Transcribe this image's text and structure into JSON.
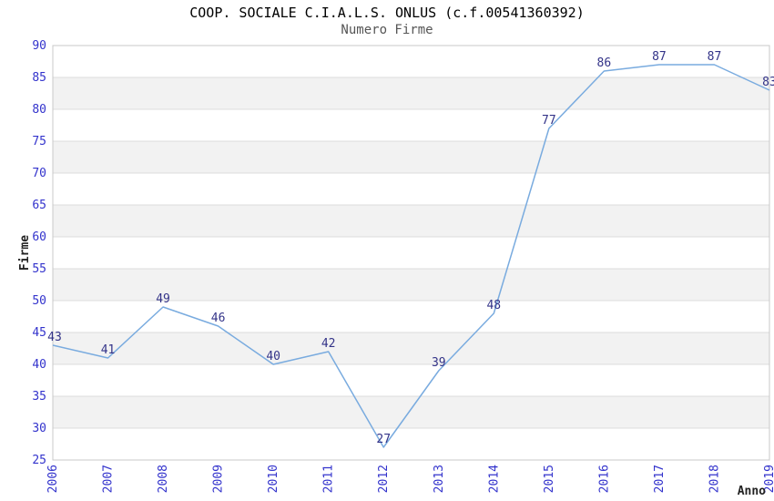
{
  "title": "COOP. SOCIALE C.I.A.L.S. ONLUS (c.f.00541360392)",
  "subtitle": "Numero Firme",
  "chart_data": {
    "type": "line",
    "title": "COOP. SOCIALE C.I.A.L.S. ONLUS (c.f.00541360392)",
    "subtitle": "Numero Firme",
    "x": [
      "2006",
      "2007",
      "2008",
      "2009",
      "2010",
      "2011",
      "2012",
      "2013",
      "2014",
      "2015",
      "2016",
      "2017",
      "2018",
      "2019"
    ],
    "values": [
      43,
      41,
      49,
      46,
      40,
      42,
      27,
      39,
      48,
      77,
      86,
      87,
      87,
      83
    ],
    "xlabel": "Anno",
    "ylabel": "Firme",
    "ylim": [
      25,
      90
    ],
    "ytick_step": 5,
    "yticks": [
      25,
      30,
      35,
      40,
      45,
      50,
      55,
      60,
      65,
      70,
      75,
      80,
      85,
      90
    ],
    "grid": "horizontal gridlines with alternating shaded bands",
    "legend": "none",
    "point_labels_visible": true,
    "colors": {
      "line": "#79abdf",
      "tick_label": "#3333cc",
      "point_label": "#333388",
      "band": "#f2f2f2",
      "gridline": "#dcdcdc",
      "plot_border": "#c8c8c8",
      "axis_title": "#222222",
      "title": "#000000",
      "subtitle": "#555555",
      "background": "#ffffff"
    }
  }
}
